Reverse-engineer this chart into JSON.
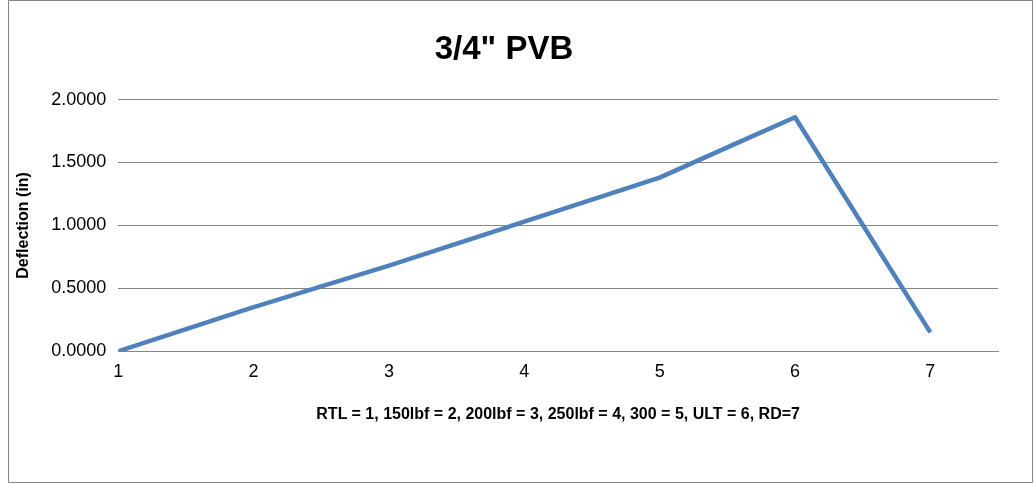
{
  "chart_data": {
    "type": "line",
    "title": "3/4\" PVB",
    "xlabel": "RTL = 1, 150lbf = 2, 200lbf = 3, 250lbf = 4, 300 = 5, ULT = 6, RD=7",
    "ylabel": "Deflection (in)",
    "x": [
      1,
      2,
      3,
      4,
      5,
      6,
      7
    ],
    "series": [
      {
        "color": "#4f81bd",
        "values": [
          0.0,
          0.35,
          0.68,
          1.03,
          1.38,
          1.86,
          0.15
        ]
      }
    ],
    "xlim": [
      1,
      7.5
    ],
    "xticks": [
      1,
      2,
      3,
      4,
      5,
      6,
      7
    ],
    "ylim": [
      0,
      2
    ],
    "yticks": [
      {
        "value": 0,
        "label": "0.0000"
      },
      {
        "value": 0.5,
        "label": "0.5000"
      },
      {
        "value": 1,
        "label": "1.0000"
      },
      {
        "value": 1.5,
        "label": "1.5000"
      },
      {
        "value": 2,
        "label": "2.0000"
      }
    ],
    "grid": "y",
    "legend": false,
    "marker": "none",
    "line_style": "solid"
  }
}
